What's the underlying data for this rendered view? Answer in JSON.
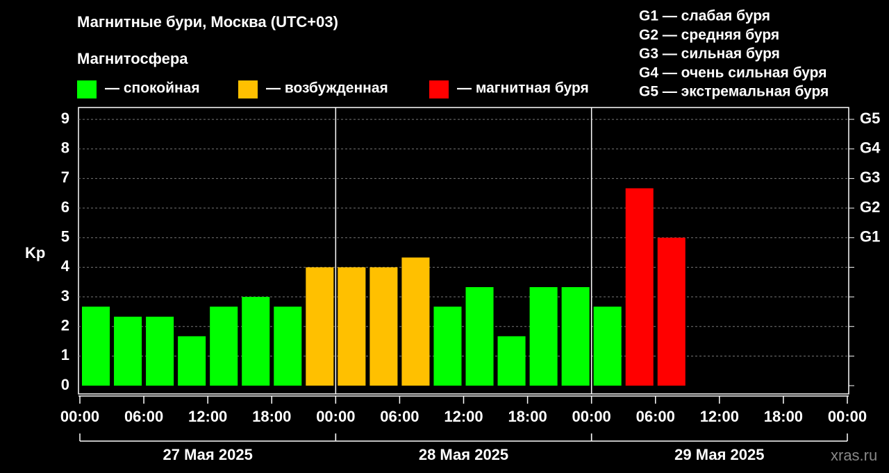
{
  "chart_data": {
    "type": "bar",
    "title": "Магнитные бури, Москва (UTC+03)",
    "legend_title": "Магнитосфера",
    "y_label": "Kp",
    "watermark": "xras.ru",
    "storm_scale": [
      "G1 — слабая буря",
      "G2 — средняя буря",
      "G3 — сильная буря",
      "G4 — очень сильная буря",
      "G5 — экстремальная буря"
    ],
    "x": [
      0,
      3,
      6,
      9,
      12,
      15,
      18,
      21,
      24,
      27,
      30,
      33,
      36,
      39,
      42,
      45,
      48,
      51,
      54
    ],
    "series": [
      {
        "name": "— спокойная",
        "color": "#00ff00",
        "values": [
          2.67,
          2.33,
          2.33,
          1.67,
          2.67,
          3,
          2.67,
          null,
          null,
          null,
          null,
          2.67,
          3.33,
          1.67,
          3.33,
          3.33,
          2.67,
          null,
          null
        ]
      },
      {
        "name": "— возбужденная",
        "color": "#ffc000",
        "values": [
          null,
          null,
          null,
          null,
          null,
          null,
          null,
          4,
          4,
          4,
          4.33,
          null,
          null,
          null,
          null,
          null,
          null,
          null,
          null
        ]
      },
      {
        "name": "— магнитная буря",
        "color": "#ff0000",
        "values": [
          null,
          null,
          null,
          null,
          null,
          null,
          null,
          null,
          null,
          null,
          null,
          null,
          null,
          null,
          null,
          null,
          null,
          6.67,
          5
        ]
      }
    ],
    "bar_span": 3,
    "xlim": [
      0,
      72
    ],
    "xticks": [
      {
        "value": 0,
        "label": "00:00"
      },
      {
        "value": 6,
        "label": "06:00"
      },
      {
        "value": 12,
        "label": "12:00"
      },
      {
        "value": 18,
        "label": "18:00"
      },
      {
        "value": 24,
        "label": "00:00"
      },
      {
        "value": 30,
        "label": "06:00"
      },
      {
        "value": 36,
        "label": "12:00"
      },
      {
        "value": 42,
        "label": "18:00"
      },
      {
        "value": 48,
        "label": "00:00"
      },
      {
        "value": 54,
        "label": "06:00"
      },
      {
        "value": 60,
        "label": "12:00"
      },
      {
        "value": 66,
        "label": "18:00"
      },
      {
        "value": 72,
        "label": "00:00"
      }
    ],
    "days": [
      {
        "start": 0,
        "end": 24,
        "label": "27 Мая 2025"
      },
      {
        "start": 24,
        "end": 48,
        "label": "28 Мая 2025"
      },
      {
        "start": 48,
        "end": 72,
        "label": "29 Мая 2025"
      }
    ],
    "ylim": [
      -0.28,
      9.4
    ],
    "yticks": [
      0,
      1,
      2,
      3,
      4,
      5,
      6,
      7,
      8,
      9
    ],
    "y2lim": [
      -0.28,
      9.4
    ],
    "y2ticks": [
      {
        "value": 5,
        "label": "G1"
      },
      {
        "value": 6,
        "label": "G2"
      },
      {
        "value": 7,
        "label": "G3"
      },
      {
        "value": 8,
        "label": "G4"
      },
      {
        "value": 9,
        "label": "G5"
      }
    ],
    "grid": true
  }
}
